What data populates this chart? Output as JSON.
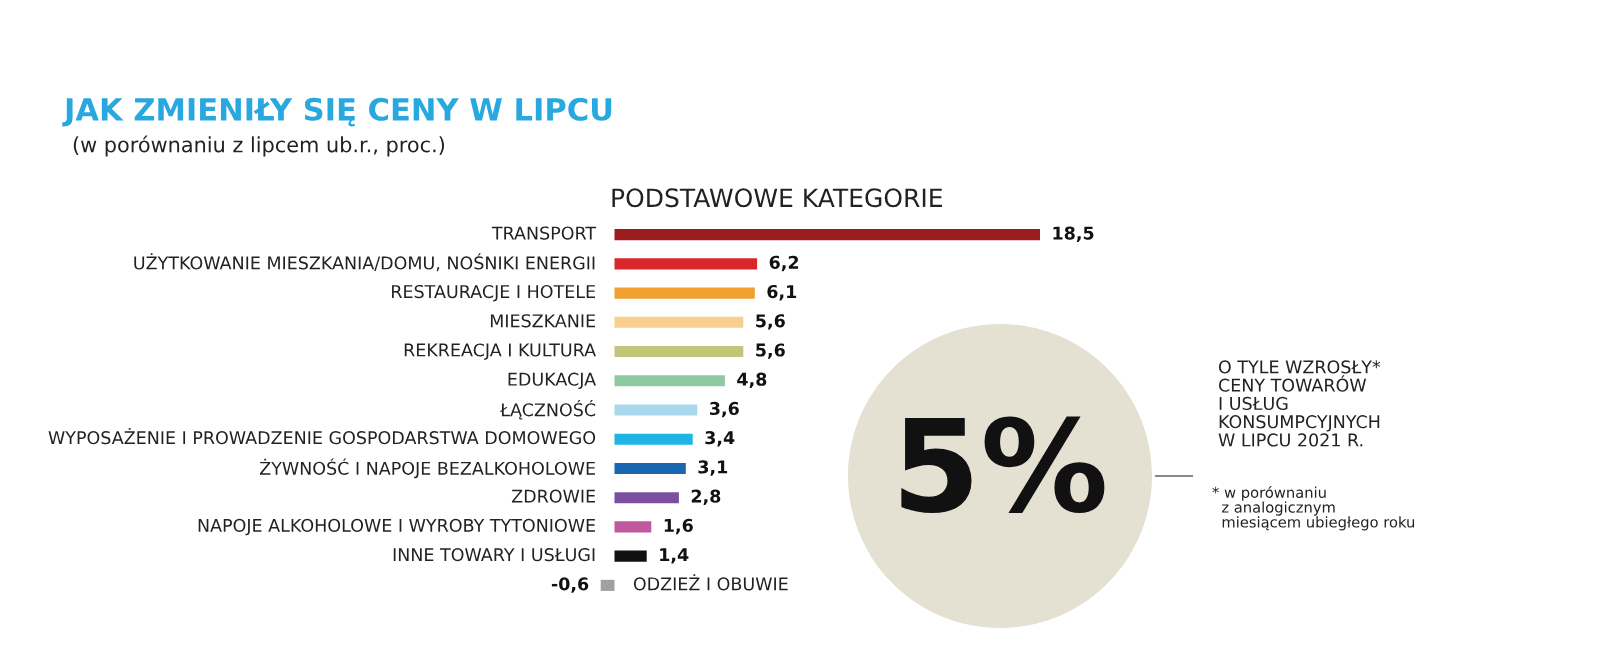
{
  "chart_data": {
    "type": "bar",
    "orientation": "horizontal",
    "data_labels": true,
    "title": "JAK ZMIENIŁY SIĘ CENY W LIPCU",
    "subtitle": "(w porównaniu z lipcem ub.r., proc.)",
    "categories": [
      "TRANSPORT",
      "UŻYTKOWANIE MIESZKANIA/DOMU, NOŚNIKI ENERGII",
      "RESTAURACJE I HOTELE",
      "MIESZKANIE",
      "REKREACJA I KULTURA",
      "EDUKACJA",
      "ŁĄCZNOŚĆ",
      "WYPOSAŻENIE I PROWADZENIE GOSPODARSTWA DOMOWEGO",
      "ŻYWNOŚĆ I NAPOJE BEZALKOHOLOWE",
      "ZDROWIE",
      "NAPOJE ALKOHOLOWE I WYROBY TYTONIOWE",
      "INNE TOWARY I USŁUGI",
      "ODZIEŻ I OBUWIE"
    ],
    "values": [
      18.5,
      6.2,
      6.1,
      5.6,
      5.6,
      4.8,
      3.6,
      3.4,
      3.1,
      2.8,
      1.6,
      1.4,
      -0.6
    ],
    "value_labels": [
      "18,5",
      "6,2",
      "6,1",
      "5,6",
      "5,6",
      "4,8",
      "3,6",
      "3,4",
      "3,1",
      "2,8",
      "1,6",
      "1,4",
      "-0,6"
    ],
    "colors": [
      "#9b1c1c",
      "#d9262b",
      "#f0a030",
      "#f8cf8e",
      "#c2c47a",
      "#8fc9a0",
      "#a8d8ec",
      "#1fb4e6",
      "#1a66b0",
      "#7a4fa0",
      "#c058a0",
      "#111111",
      "#a0a0a0"
    ],
    "annotations": [
      "PODSTAWOWE KATEGORIE",
      "5%",
      "O TYLE WZROSŁY*\nCENY TOWARÓW\nI USŁUG\nKONSUMPCYJNYCH\nW LIPCU 2021 R.",
      "* w porównaniu\n  z analogicznym\n  miesiącem ubiegłego roku"
    ]
  }
}
